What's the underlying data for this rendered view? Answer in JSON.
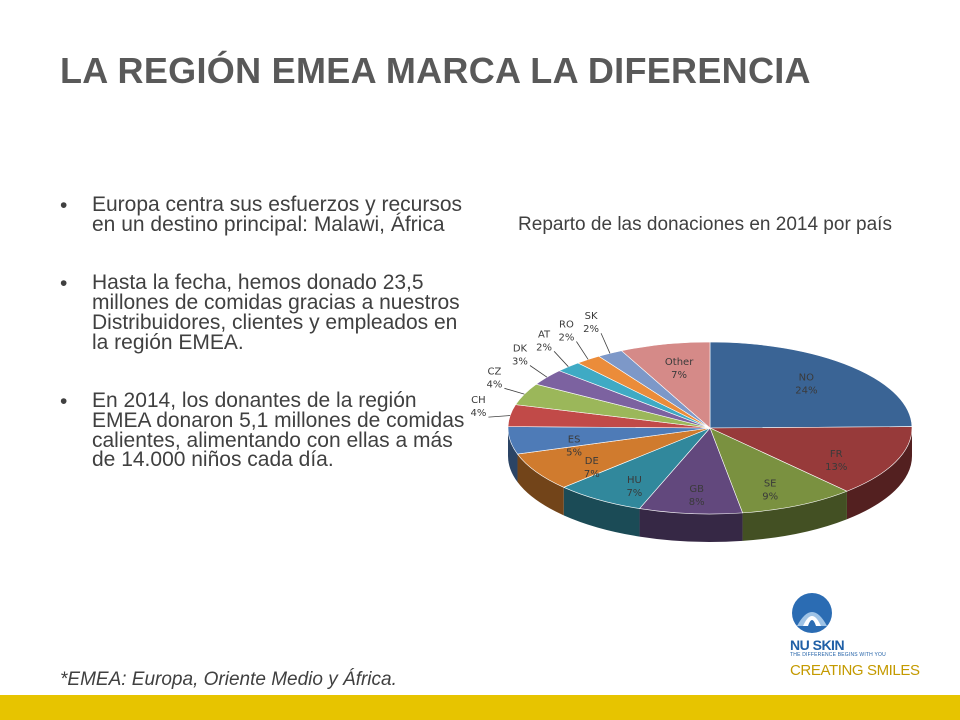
{
  "slide": {
    "title": "LA REGIÓN EMEA MARCA LA DIFERENCIA",
    "bullets": [
      "Europa centra sus esfuerzos y recursos en un destino principal: Malawi, África",
      "Hasta la fecha, hemos donado 23,5 millones de comidas gracias a nuestros Distribuidores, clientes y empleados en la región EMEA.",
      "En 2014, los donantes de la región EMEA donaron 5,1 millones de comidas calientes, alimentando con ellas a más de 14.000 niños cada día."
    ],
    "footnote": "*EMEA: Europa, Oriente Medio y África."
  },
  "logo": {
    "brand": "NU SKIN",
    "tagline": "THE DIFFERENCE BEGINS WITH YOU",
    "slogan": "CREATING SMILES",
    "icon": "nu-skin-logo-icon"
  },
  "colors": {
    "band": "#e7c400",
    "title": "#595959"
  },
  "chart_data": {
    "type": "pie",
    "title": "Reparto de las donaciones en 2014 por país",
    "style": "3d-pie",
    "legend": "none (labels on slices)",
    "slices": [
      {
        "label": "NO",
        "value": 24,
        "display": "24%",
        "color": "#3a6495"
      },
      {
        "label": "FR",
        "value": 13,
        "display": "13%",
        "color": "#973a3a"
      },
      {
        "label": "SE",
        "value": 9,
        "display": "9%",
        "color": "#7a9140"
      },
      {
        "label": "GB",
        "value": 8,
        "display": "8%",
        "color": "#62487d"
      },
      {
        "label": "HU",
        "value": 7,
        "display": "7%",
        "color": "#31889c"
      },
      {
        "label": "DE",
        "value": 7,
        "display": "7%",
        "color": "#d07b2e"
      },
      {
        "label": "ES",
        "value": 5,
        "display": "5%",
        "color": "#4e7bb7"
      },
      {
        "label": "CH",
        "value": 4,
        "display": "4%",
        "color": "#c14a48"
      },
      {
        "label": "CZ",
        "value": 4,
        "display": "4%",
        "color": "#9bb75a"
      },
      {
        "label": "DK",
        "value": 3,
        "display": "3%",
        "color": "#7c62a0"
      },
      {
        "label": "AT",
        "value": 2,
        "display": "2%",
        "color": "#3faac4"
      },
      {
        "label": "RO",
        "value": 2,
        "display": "2%",
        "color": "#eb8c3a"
      },
      {
        "label": "SK",
        "value": 2,
        "display": "2%",
        "color": "#7d98c8"
      },
      {
        "label": "Other",
        "value": 7,
        "display": "7%",
        "color": "#d58a88"
      }
    ]
  }
}
